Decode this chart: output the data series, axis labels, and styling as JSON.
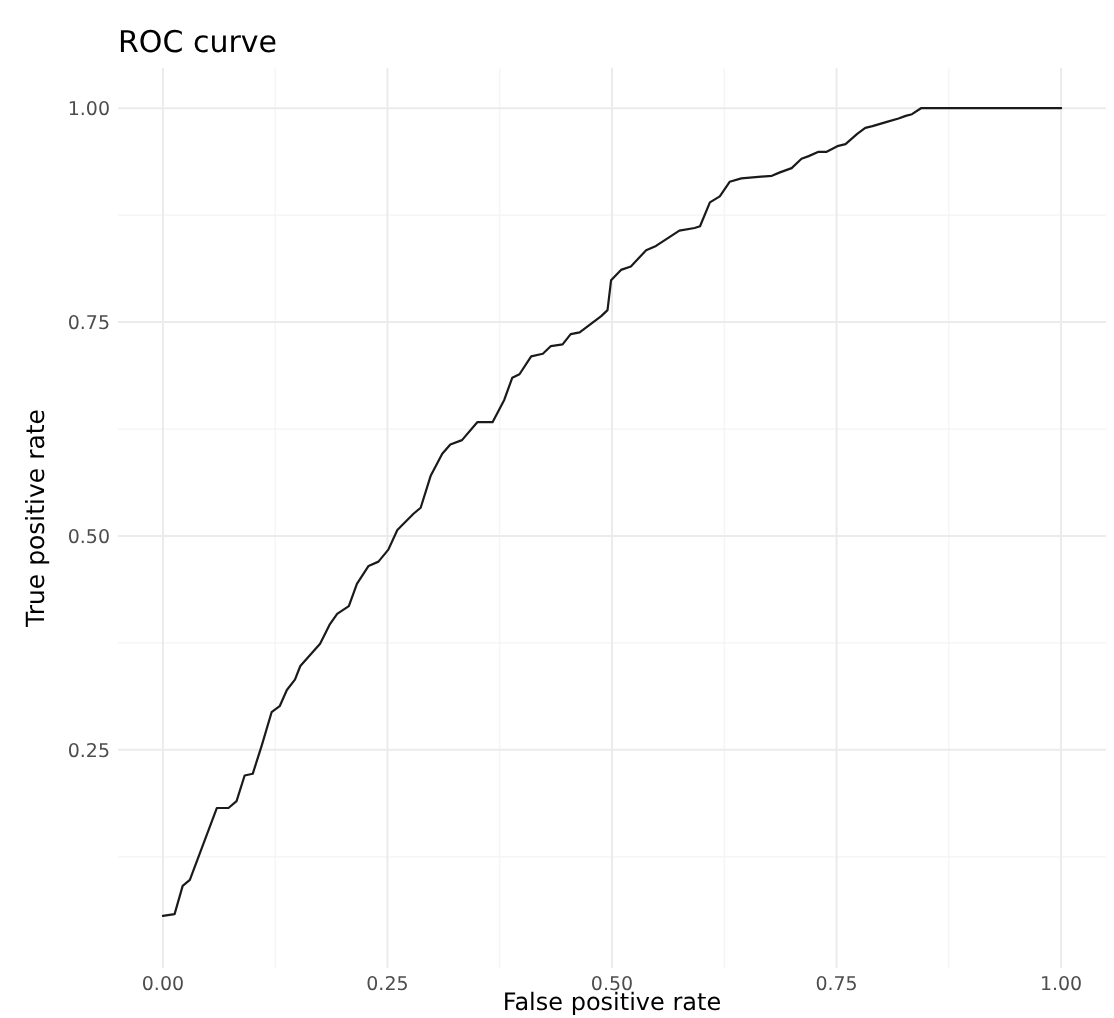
{
  "chart_data": {
    "type": "line",
    "title": "ROC curve",
    "xlabel": "False positive rate",
    "ylabel": "True positive rate",
    "xlim": [
      -0.05,
      1.05
    ],
    "ylim": [
      -0.005,
      1.047
    ],
    "xticks": [
      {
        "value": 0,
        "label": "0.00"
      },
      {
        "value": 0.25,
        "label": "0.25"
      },
      {
        "value": 0.5,
        "label": "0.50"
      },
      {
        "value": 0.75,
        "label": "0.75"
      },
      {
        "value": 1,
        "label": "1.00"
      }
    ],
    "yticks": [
      {
        "value": 0.25,
        "label": "0.25"
      },
      {
        "value": 0.5,
        "label": "0.50"
      },
      {
        "value": 0.75,
        "label": "0.75"
      },
      {
        "value": 1,
        "label": "1.00"
      }
    ],
    "grid": true,
    "marker": "none",
    "line_style": "solid",
    "series": [
      {
        "color": "#1a1a1a",
        "x": [
          0,
          0.013,
          0.022,
          0.03,
          0.06,
          0.073,
          0.082,
          0.091,
          0.1,
          0.11,
          0.121,
          0.13,
          0.138,
          0.147,
          0.153,
          0.175,
          0.186,
          0.194,
          0.207,
          0.216,
          0.229,
          0.24,
          0.251,
          0.261,
          0.279,
          0.287,
          0.298,
          0.311,
          0.32,
          0.333,
          0.35,
          0.367,
          0.38,
          0.389,
          0.397,
          0.41,
          0.423,
          0.432,
          0.445,
          0.454,
          0.464,
          0.488,
          0.495,
          0.499,
          0.51,
          0.521,
          0.538,
          0.549,
          0.575,
          0.592,
          0.598,
          0.609,
          0.62,
          0.631,
          0.644,
          0.678,
          0.687,
          0.7,
          0.711,
          0.719,
          0.73,
          0.739,
          0.752,
          0.76,
          0.773,
          0.782,
          0.79,
          0.806,
          0.819,
          0.827,
          0.834,
          0.844,
          1
        ],
        "values": [
          0.056,
          0.058,
          0.091,
          0.098,
          0.182,
          0.182,
          0.19,
          0.22,
          0.222,
          0.255,
          0.294,
          0.301,
          0.32,
          0.332,
          0.348,
          0.374,
          0.397,
          0.409,
          0.418,
          0.444,
          0.465,
          0.47,
          0.484,
          0.507,
          0.526,
          0.533,
          0.57,
          0.596,
          0.607,
          0.612,
          0.633,
          0.633,
          0.659,
          0.685,
          0.689,
          0.71,
          0.713,
          0.722,
          0.724,
          0.736,
          0.738,
          0.757,
          0.764,
          0.799,
          0.811,
          0.815,
          0.834,
          0.839,
          0.857,
          0.86,
          0.862,
          0.89,
          0.897,
          0.914,
          0.918,
          0.921,
          0.925,
          0.93,
          0.941,
          0.944,
          0.949,
          0.949,
          0.956,
          0.958,
          0.97,
          0.977,
          0.979,
          0.984,
          0.988,
          0.991,
          0.993,
          1,
          1
        ]
      }
    ]
  }
}
